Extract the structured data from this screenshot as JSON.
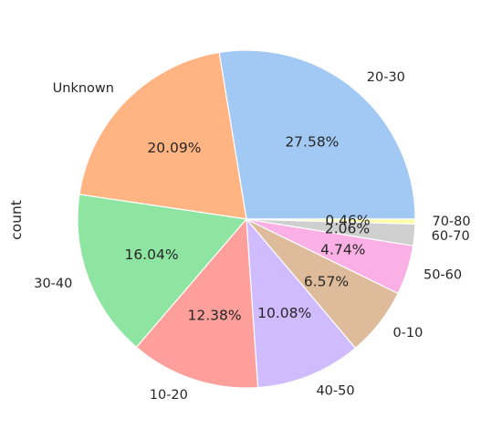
{
  "chart_data": {
    "type": "pie",
    "ylabel": "count",
    "start_angle_deg": 0,
    "direction": "counterclockwise",
    "slices": [
      {
        "label": "20-30",
        "percent": 27.58,
        "percent_text": "27.58%",
        "color": "#a1c9f4"
      },
      {
        "label": "Unknown",
        "percent": 20.09,
        "percent_text": "20.09%",
        "color": "#ffb482"
      },
      {
        "label": "30-40",
        "percent": 16.04,
        "percent_text": "16.04%",
        "color": "#8de5a1"
      },
      {
        "label": "10-20",
        "percent": 12.38,
        "percent_text": "12.38%",
        "color": "#ff9f9b"
      },
      {
        "label": "40-50",
        "percent": 10.08,
        "percent_text": "10.08%",
        "color": "#d0bbff"
      },
      {
        "label": "0-10",
        "percent": 6.57,
        "percent_text": "6.57%",
        "color": "#debb9b"
      },
      {
        "label": "50-60",
        "percent": 4.74,
        "percent_text": "4.74%",
        "color": "#fab0e4"
      },
      {
        "label": "60-70",
        "percent": 2.06,
        "percent_text": "2.06%",
        "color": "#cfcfcf"
      },
      {
        "label": "70-80",
        "percent": 0.46,
        "percent_text": "0.46%",
        "color": "#fffea3"
      }
    ]
  }
}
